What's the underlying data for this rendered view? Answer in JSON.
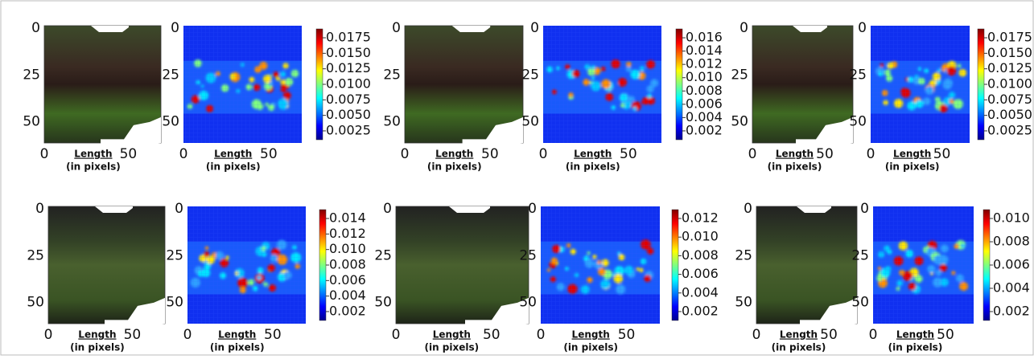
{
  "panels": [
    {
      "image": {
        "yticks": [
          "0",
          "25",
          "50"
        ],
        "xticks": [
          "0",
          "50"
        ],
        "xlabel": "Length",
        "xlabel_sub": "(in pixels)"
      },
      "heatmap": {
        "yticks": [
          "0",
          "25",
          "50"
        ],
        "xticks": [
          "0",
          "50"
        ],
        "xlabel": "Length",
        "xlabel_sub": "(in pixels)"
      },
      "colorbar": {
        "ticks": [
          "0.0175",
          "0.0150",
          "0.0125",
          "0.0100",
          "0.0075",
          "0.0050",
          "0.0025"
        ]
      }
    },
    {
      "image": {
        "yticks": [
          "0",
          "25",
          "50"
        ],
        "xticks": [
          "0",
          "50"
        ],
        "xlabel": "Length",
        "xlabel_sub": "(in pixels)"
      },
      "heatmap": {
        "yticks": [
          "0",
          "25",
          "50"
        ],
        "xticks": [
          "0",
          "50"
        ],
        "xlabel": "Length",
        "xlabel_sub": "(in pixels)"
      },
      "colorbar": {
        "ticks": [
          "0.016",
          "0.014",
          "0.012",
          "0.010",
          "0.008",
          "0.006",
          "0.004",
          "0.002"
        ]
      }
    },
    {
      "image": {
        "yticks": [
          "0",
          "25",
          "50"
        ],
        "xticks": [
          "0",
          "50"
        ],
        "xlabel": "Length",
        "xlabel_sub": "(in pixels)"
      },
      "heatmap": {
        "yticks": [
          "0",
          "25",
          "50"
        ],
        "xticks": [
          "0",
          "50"
        ],
        "xlabel": "Length",
        "xlabel_sub": "(in pixels)"
      },
      "colorbar": {
        "ticks": [
          "0.0175",
          "0.0150",
          "0.0125",
          "0.0100",
          "0.0075",
          "0.0050",
          "0.0025"
        ]
      }
    },
    {
      "image": {
        "yticks": [
          "0",
          "25",
          "50"
        ],
        "xticks": [
          "0",
          "50"
        ],
        "xlabel": "Length",
        "xlabel_sub": "(in pixels)"
      },
      "heatmap": {
        "yticks": [
          "0",
          "25",
          "50"
        ],
        "xticks": [
          "0",
          "50"
        ],
        "xlabel": "Length",
        "xlabel_sub": "(in pixels)"
      },
      "colorbar": {
        "ticks": [
          "0.014",
          "0.012",
          "0.010",
          "0.008",
          "0.006",
          "0.004",
          "0.002"
        ]
      }
    },
    {
      "image": {
        "yticks": [
          "0",
          "25",
          "50"
        ],
        "xticks": [
          "0",
          "50"
        ],
        "xlabel": "Length",
        "xlabel_sub": "(in pixels)"
      },
      "heatmap": {
        "yticks": [
          "0",
          "25",
          "50"
        ],
        "xticks": [
          "0",
          "50"
        ],
        "xlabel": "Length",
        "xlabel_sub": "(in pixels)"
      },
      "colorbar": {
        "ticks": [
          "0.012",
          "0.010",
          "0.008",
          "0.006",
          "0.004",
          "0.002"
        ]
      }
    },
    {
      "image": {
        "yticks": [
          "0",
          "25",
          "50"
        ],
        "xticks": [
          "0",
          "50"
        ],
        "xlabel": "Length",
        "xlabel_sub": "(in pixels)"
      },
      "heatmap": {
        "yticks": [
          "0",
          "25",
          "50"
        ],
        "xticks": [
          "0",
          "50"
        ],
        "xlabel": "Length",
        "xlabel_sub": "(in pixels)"
      },
      "colorbar": {
        "ticks": [
          "0.010",
          "0.008",
          "0.006",
          "0.004",
          "0.002"
        ]
      }
    }
  ]
}
